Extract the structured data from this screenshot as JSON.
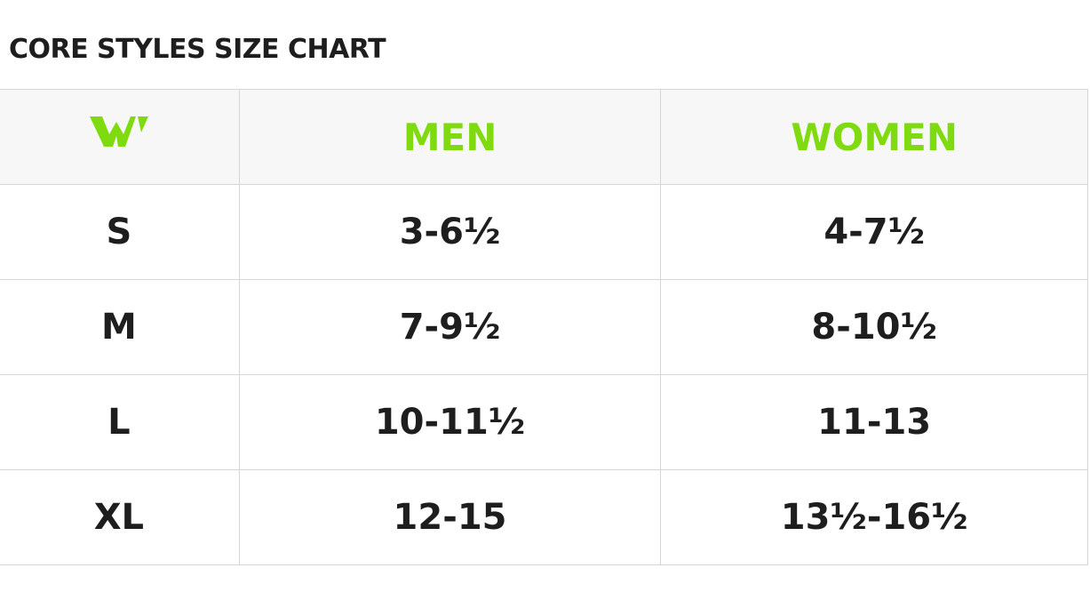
{
  "header": {
    "title": "CORE STYLES SIZE CHART"
  },
  "table": {
    "columns": [
      "MEN",
      "WOMEN"
    ],
    "rows": [
      [
        "S",
        "3-6½",
        "4-7½"
      ],
      [
        "M",
        "7-9½",
        "8-10½"
      ],
      [
        "L",
        "10-11½",
        "11-13"
      ],
      [
        "XL",
        "12-15",
        "13½-16½"
      ]
    ]
  }
}
